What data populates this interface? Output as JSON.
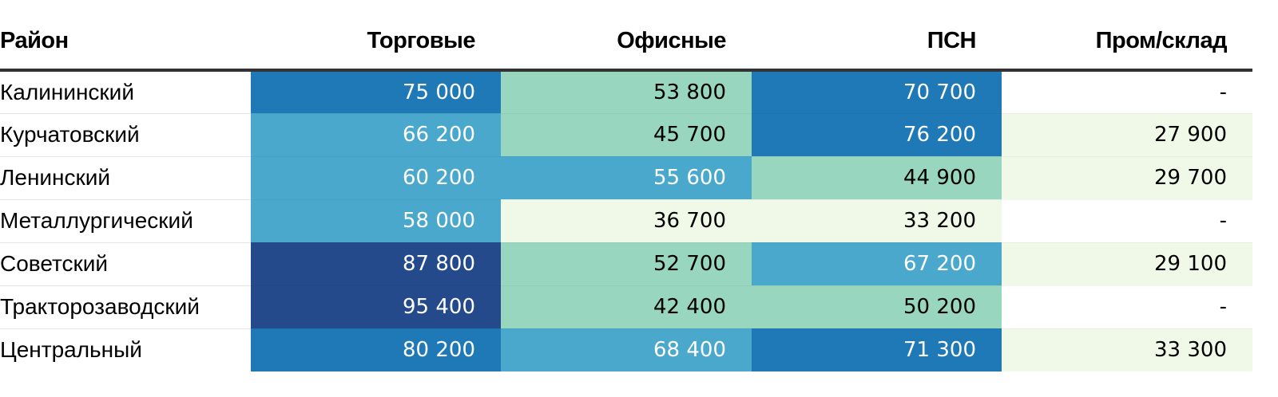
{
  "chart_data": {
    "type": "table",
    "columns": [
      "Район",
      "Торговые",
      "Офисные",
      "ПСН",
      "Пром/склад"
    ],
    "rows": [
      {
        "district": "Калининский",
        "values": [
          "75 000",
          "53 800",
          "70 700",
          "-"
        ]
      },
      {
        "district": "Курчатовский",
        "values": [
          "66 200",
          "45 700",
          "76 200",
          "27 900"
        ]
      },
      {
        "district": "Ленинский",
        "values": [
          "60 200",
          "55 600",
          "44 900",
          "29 700"
        ]
      },
      {
        "district": "Металлургический",
        "values": [
          "58 000",
          "36 700",
          "33 200",
          "-"
        ]
      },
      {
        "district": "Советский",
        "values": [
          "87 800",
          "52 700",
          "67 200",
          "29 100"
        ]
      },
      {
        "district": "Тракторозаводский",
        "values": [
          "95 400",
          "42 400",
          "50 200",
          "-"
        ]
      },
      {
        "district": "Центральный",
        "values": [
          "80 200",
          "68 400",
          "71 300",
          "33 300"
        ]
      }
    ],
    "color_scale": {
      "breaks": [
        40000,
        55000,
        70000,
        85000
      ],
      "colors": [
        "#f0f9e8",
        "#98d6c0",
        "#4aa8cc",
        "#1f79b7",
        "#244a8c"
      ],
      "dark_text_color": "#000000",
      "light_text_color": "#ffffff",
      "empty_fill": "#ffffff"
    }
  }
}
